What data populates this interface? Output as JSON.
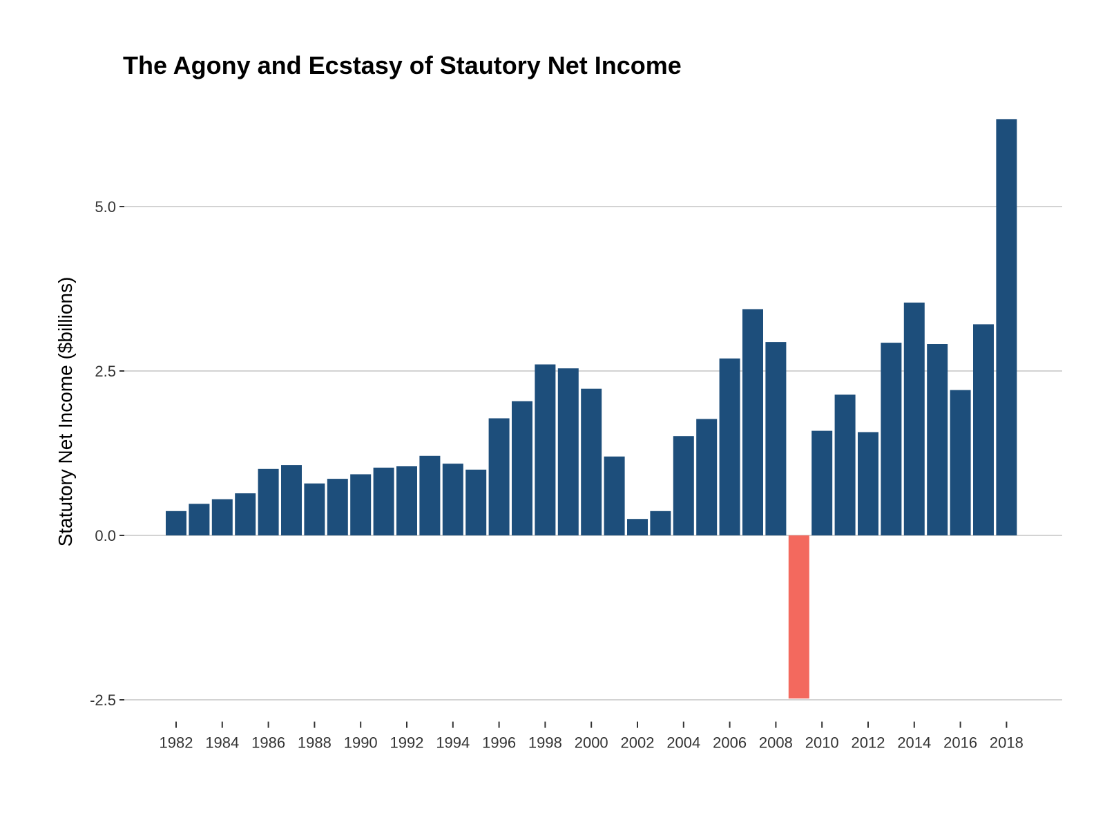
{
  "chart_data": {
    "type": "bar",
    "title": "The Agony and Ecstasy of Stautory Net Income",
    "xlabel": "",
    "ylabel": "Statutory Net Income ($billions)",
    "ylim": [
      -2.8,
      6.6
    ],
    "y_ticks": [
      {
        "value": -2.5,
        "label": "-2.5"
      },
      {
        "value": 0.0,
        "label": "0.0"
      },
      {
        "value": 2.5,
        "label": "2.5"
      },
      {
        "value": 5.0,
        "label": "5.0"
      }
    ],
    "x_tick_labels": [
      "1982",
      "1984",
      "1986",
      "1988",
      "1990",
      "1992",
      "1994",
      "1996",
      "1998",
      "2000",
      "2002",
      "2004",
      "2006",
      "2008",
      "2010",
      "2012",
      "2014",
      "2016",
      "2018"
    ],
    "grid": true,
    "colors": {
      "positive": "#1d4e7b",
      "negative": "#f3695e",
      "grid": "#d3d3d3"
    },
    "categories": [
      1982,
      1983,
      1984,
      1985,
      1986,
      1987,
      1988,
      1989,
      1990,
      1991,
      1992,
      1993,
      1994,
      1995,
      1996,
      1997,
      1998,
      1999,
      2000,
      2001,
      2002,
      2003,
      2004,
      2005,
      2006,
      2007,
      2008,
      2009,
      2010,
      2011,
      2012,
      2013,
      2014,
      2015,
      2016,
      2017,
      2018
    ],
    "values": [
      0.37,
      0.48,
      0.55,
      0.64,
      1.01,
      1.07,
      0.79,
      0.86,
      0.93,
      1.03,
      1.05,
      1.21,
      1.09,
      1.0,
      1.78,
      2.04,
      2.6,
      2.54,
      2.23,
      1.2,
      0.25,
      0.37,
      1.51,
      1.77,
      2.69,
      3.44,
      2.94,
      -2.48,
      1.59,
      2.14,
      1.57,
      2.93,
      3.54,
      2.91,
      2.21,
      3.21,
      6.33
    ]
  }
}
